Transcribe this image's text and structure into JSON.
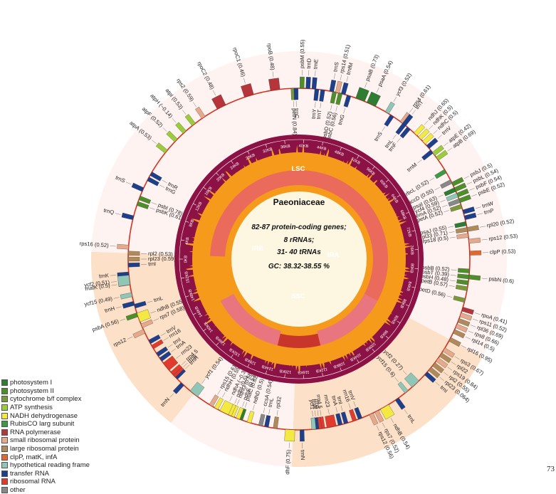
{
  "center": {
    "title": "Paeoniaceae",
    "lines": [
      "82-87 protein-coding genes;",
      "8 rRNAs;",
      "31- 40 tRNAs",
      "GC: 38.32-38.55 %"
    ]
  },
  "regions": {
    "lsc": "LSC",
    "ssc": "SSC",
    "ira": "IRA",
    "irb": "IRB"
  },
  "page_number": "73",
  "legend": [
    {
      "label": "photosystem I",
      "color": "#2e7d32"
    },
    {
      "label": "photosystem II",
      "color": "#4f8f2a"
    },
    {
      "label": "cytochrome b/f complex",
      "color": "#7a9a3a"
    },
    {
      "label": "ATP synthesis",
      "color": "#9ccc3c"
    },
    {
      "label": "NADH dehydrogenase",
      "color": "#f4e842"
    },
    {
      "label": "RubisCO larg subunit",
      "color": "#3e9a45"
    },
    {
      "label": "RNA polymerase",
      "color": "#b5353a"
    },
    {
      "label": "small ribosomal protein",
      "color": "#e7a98b"
    },
    {
      "label": "large ribosomal protein",
      "color": "#b08a5a"
    },
    {
      "label": "clpP, matK, infA",
      "color": "#e06a2c"
    },
    {
      "label": "hypothetical reading frame",
      "color": "#8fc6b6"
    },
    {
      "label": "transfer RNA",
      "color": "#1d3f8c"
    },
    {
      "label": "ribosomal RNA",
      "color": "#e13b2e"
    },
    {
      "label": "other",
      "color": "#888888"
    }
  ],
  "kb_ticks": [
    "0KB",
    "4KB",
    "8KB",
    "12KB",
    "16KB",
    "20KB",
    "24KB",
    "28KB",
    "32KB",
    "36KB",
    "40KB",
    "44KB",
    "48KB",
    "52KB",
    "56KB",
    "60KB",
    "64KB",
    "68KB",
    "72KB",
    "76KB",
    "80KB",
    "84KB",
    "88KB",
    "92KB",
    "96KB",
    "100KB",
    "104KB",
    "108KB",
    "112KB",
    "116KB",
    "120KB",
    "124KB",
    "128KB",
    "132KB",
    "136KB",
    "140KB",
    "144KB",
    "148KB",
    "152KB"
  ],
  "genes": [
    {
      "label": "psbA (0.56)",
      "angle": 251,
      "cls": 1,
      "side": "out"
    },
    {
      "label": "trnH",
      "angle": 255,
      "cls": 11,
      "side": "out"
    },
    {
      "label": "matK (0.5)",
      "angle": 262,
      "cls": 9,
      "side": "out"
    },
    {
      "label": "trnK",
      "angle": 265,
      "cls": 11,
      "side": "out"
    },
    {
      "label": "rps16 (0.52)",
      "angle": 274,
      "cls": 7,
      "side": "out"
    },
    {
      "label": "trnQ",
      "angle": 284,
      "cls": 11,
      "side": "out"
    },
    {
      "label": "psbK (0.61)",
      "angle": 289,
      "cls": 1,
      "side": "in"
    },
    {
      "label": "psbI (0.78)",
      "angle": 291,
      "cls": 1,
      "side": "in"
    },
    {
      "label": "trnS",
      "angle": 294,
      "cls": 11,
      "side": "out"
    },
    {
      "label": "trnG",
      "angle": 298,
      "cls": 11,
      "side": "in"
    },
    {
      "label": "trnR",
      "angle": 300,
      "cls": 11,
      "side": "in"
    },
    {
      "label": "atpA (0.53)",
      "angle": 309,
      "cls": 3,
      "side": "out"
    },
    {
      "label": "atpF (0.52)",
      "angle": 314,
      "cls": 3,
      "side": "out"
    },
    {
      "label": "atpH (~0.14)",
      "angle": 318,
      "cls": 3,
      "side": "out"
    },
    {
      "label": "atpI (0.53)",
      "angle": 322,
      "cls": 3,
      "side": "out"
    },
    {
      "label": "rps2 (0.59)",
      "angle": 326,
      "cls": 7,
      "side": "out"
    },
    {
      "label": "rpoC2 (0.48)",
      "angle": 333,
      "cls": 6,
      "side": "out"
    },
    {
      "label": "rpoC1 (0.46)",
      "angle": 343,
      "cls": 6,
      "side": "out"
    },
    {
      "label": "rpoB (0.48)",
      "angle": 352,
      "cls": 6,
      "side": "out"
    },
    {
      "label": "petN (0.84)",
      "angle": 358,
      "cls": 2,
      "side": "in"
    },
    {
      "label": "trnC",
      "angle": 359,
      "cls": 11,
      "side": "in"
    },
    {
      "label": "psbM (0.55)",
      "angle": 1,
      "cls": 1,
      "side": "out"
    },
    {
      "label": "trnD",
      "angle": 3,
      "cls": 11,
      "side": "out"
    },
    {
      "label": "trnE",
      "angle": 5,
      "cls": 11,
      "side": "out"
    },
    {
      "label": "trnY",
      "angle": 6,
      "cls": 11,
      "side": "in"
    },
    {
      "label": "trnT",
      "angle": 8,
      "cls": 11,
      "side": "in"
    },
    {
      "label": "psbD (0.52)",
      "angle": 12,
      "cls": 1,
      "side": "in"
    },
    {
      "label": "psbC (0.56)",
      "angle": 14,
      "cls": 1,
      "side": "in"
    },
    {
      "label": "trnS",
      "angle": 11,
      "cls": 11,
      "side": "out"
    },
    {
      "label": "rps14 (0.51)",
      "angle": 13,
      "cls": 7,
      "side": "out"
    },
    {
      "label": "trnfM",
      "angle": 15,
      "cls": 11,
      "side": "out"
    },
    {
      "label": "trnG",
      "angle": 17,
      "cls": 11,
      "side": "in"
    },
    {
      "label": "psaB (0.73)",
      "angle": 21,
      "cls": 0,
      "side": "out"
    },
    {
      "label": "psaA (0.54)",
      "angle": 25,
      "cls": 0,
      "side": "out"
    },
    {
      "label": "ycf3 (0.52)",
      "angle": 31,
      "cls": 10,
      "side": "out"
    },
    {
      "label": "trnS",
      "angle": 33,
      "cls": 11,
      "side": "in"
    },
    {
      "label": "rps4 (0.61)",
      "angle": 37,
      "cls": 7,
      "side": "out"
    },
    {
      "label": "trnT",
      "angle": 38,
      "cls": 11,
      "side": "out"
    },
    {
      "label": "trnL",
      "angle": 38,
      "cls": 11,
      "side": "in"
    },
    {
      "label": "trnF",
      "angle": 40,
      "cls": 11,
      "side": "in"
    },
    {
      "label": "ndhJ (0.65)",
      "angle": 43,
      "cls": 4,
      "side": "out"
    },
    {
      "label": "ndhK (0.5)",
      "angle": 45,
      "cls": 4,
      "side": "out"
    },
    {
      "label": "ndhC (0.5)",
      "angle": 47,
      "cls": 4,
      "side": "out"
    },
    {
      "label": "trnV",
      "angle": 49,
      "cls": 11,
      "side": "out"
    },
    {
      "label": "trnM",
      "angle": 51,
      "cls": 11,
      "side": "in"
    },
    {
      "label": "atpE (0.42)",
      "angle": 52,
      "cls": 3,
      "side": "out"
    },
    {
      "label": "atpB (0.69)",
      "angle": 54,
      "cls": 3,
      "side": "out"
    },
    {
      "label": "rbcL (0.52)",
      "angle": 59,
      "cls": 5,
      "side": "in"
    },
    {
      "label": "accD (0.55)",
      "angle": 63,
      "cls": 13,
      "side": "in"
    },
    {
      "label": "psaI (0.63)",
      "angle": 66,
      "cls": 0,
      "side": "in"
    },
    {
      "label": "ycf4 (0.59)",
      "angle": 68,
      "cls": 10,
      "side": "in"
    },
    {
      "label": "cemA (0.52)",
      "angle": 70,
      "cls": 13,
      "side": "in"
    },
    {
      "label": "petA (0.52)",
      "angle": 72,
      "cls": 2,
      "side": "in"
    },
    {
      "label": "psbJ (0.5)",
      "angle": 64,
      "cls": 1,
      "side": "out"
    },
    {
      "label": "psbL (0.54)",
      "angle": 66,
      "cls": 1,
      "side": "out"
    },
    {
      "label": "psbF (0.54)",
      "angle": 68,
      "cls": 1,
      "side": "out"
    },
    {
      "label": "psbE (0.52)",
      "angle": 70,
      "cls": 1,
      "side": "out"
    },
    {
      "label": "trnW",
      "angle": 74,
      "cls": 11,
      "side": "out"
    },
    {
      "label": "trnP",
      "angle": 76,
      "cls": 11,
      "side": "out"
    },
    {
      "label": "psaJ (0.55)",
      "angle": 78,
      "cls": 0,
      "side": "in"
    },
    {
      "label": "rpl33 (0.71)",
      "angle": 80,
      "cls": 8,
      "side": "in"
    },
    {
      "label": "rps18 (0.5)",
      "angle": 82,
      "cls": 7,
      "side": "in"
    },
    {
      "label": "rpl20 (0.52)",
      "angle": 80,
      "cls": 8,
      "side": "out"
    },
    {
      "label": "rps12 (0.53)",
      "angle": 84,
      "cls": 7,
      "side": "out"
    },
    {
      "label": "clpP (0.53)",
      "angle": 88,
      "cls": 9,
      "side": "out"
    },
    {
      "label": "psbB (0.52)",
      "angle": 94,
      "cls": 1,
      "side": "in"
    },
    {
      "label": "psbT (0.39)",
      "angle": 96,
      "cls": 1,
      "side": "in"
    },
    {
      "label": "psbH (0.48)",
      "angle": 98,
      "cls": 1,
      "side": "in"
    },
    {
      "label": "petB (0.57)",
      "angle": 100,
      "cls": 2,
      "side": "in"
    },
    {
      "label": "petD (0.56)",
      "angle": 104,
      "cls": 2,
      "side": "in"
    },
    {
      "label": "psbN (0.6)",
      "angle": 96,
      "cls": 1,
      "side": "out"
    },
    {
      "label": "rpoA (0.41)",
      "angle": 107,
      "cls": 6,
      "side": "out"
    },
    {
      "label": "rps11 (0.52)",
      "angle": 109,
      "cls": 7,
      "side": "out"
    },
    {
      "label": "rpl36 (0.69)",
      "angle": 111,
      "cls": 8,
      "side": "out"
    },
    {
      "label": "rps8 (0.66)",
      "angle": 113,
      "cls": 7,
      "side": "out"
    },
    {
      "label": "rpl14 (0.5)",
      "angle": 115,
      "cls": 8,
      "side": "out"
    },
    {
      "label": "rpl16 (0.95)",
      "angle": 118,
      "cls": 8,
      "side": "out"
    },
    {
      "label": "rps3 (0.67)",
      "angle": 122,
      "cls": 7,
      "side": "out"
    },
    {
      "label": "rpl22",
      "angle": 124,
      "cls": 8,
      "side": "out"
    },
    {
      "label": "rps19 (0.84)",
      "angle": 126,
      "cls": 7,
      "side": "out"
    },
    {
      "label": "rpl2 (0.55)",
      "angle": 128,
      "cls": 8,
      "side": "out"
    },
    {
      "label": "rpl23 (0.064)",
      "angle": 130,
      "cls": 8,
      "side": "out"
    },
    {
      "label": "trnI",
      "angle": 132,
      "cls": 11,
      "side": "out"
    },
    {
      "label": "ycf2 (0.27)",
      "angle": 137,
      "cls": 10,
      "side": "in"
    },
    {
      "label": "ycf15 (0.6)",
      "angle": 141,
      "cls": 10,
      "side": "in"
    },
    {
      "label": "trnL",
      "angle": 145,
      "cls": 11,
      "side": "out"
    },
    {
      "label": "ndhB (0.54)",
      "angle": 150,
      "cls": 4,
      "side": "out"
    },
    {
      "label": "rps7 (0.52)",
      "angle": 153,
      "cls": 7,
      "side": "out"
    },
    {
      "label": "rps12 (0.56)",
      "angle": 155,
      "cls": 7,
      "side": "out"
    },
    {
      "label": "trnV",
      "angle": 159,
      "cls": 11,
      "side": "in"
    },
    {
      "label": "rrn16",
      "angle": 161,
      "cls": 12,
      "side": "in"
    },
    {
      "label": "trnI",
      "angle": 164,
      "cls": 11,
      "side": "in"
    },
    {
      "label": "trnA",
      "angle": 166,
      "cls": 11,
      "side": "in"
    },
    {
      "label": "rrn23",
      "angle": 169,
      "cls": 12,
      "side": "in"
    },
    {
      "label": "rrn4.5",
      "angle": 172,
      "cls": 12,
      "side": "in"
    },
    {
      "label": "rrn5",
      "angle": 173,
      "cls": 12,
      "side": "in"
    },
    {
      "label": "trnR",
      "angle": 174,
      "cls": 11,
      "side": "in"
    },
    {
      "label": "trnN",
      "angle": 179,
      "cls": 11,
      "side": "out"
    },
    {
      "label": "ycf1",
      "angle": 175,
      "cls": 10,
      "side": "in"
    },
    {
      "label": "ndhF (0.75)",
      "angle": 183,
      "cls": 4,
      "side": "out"
    },
    {
      "label": "rpl32",
      "angle": 188,
      "cls": 8,
      "side": "in"
    },
    {
      "label": "trnL",
      "angle": 191,
      "cls": 11,
      "side": "in"
    },
    {
      "label": "ccsA (0.54)",
      "angle": 193,
      "cls": 13,
      "side": "in"
    },
    {
      "label": "ndhD (0.5)",
      "angle": 197,
      "cls": 4,
      "side": "in"
    },
    {
      "label": "psaC (0.62)",
      "angle": 200,
      "cls": 0,
      "side": "in"
    },
    {
      "label": "ndhE (0.53)",
      "angle": 201,
      "cls": 4,
      "side": "in"
    },
    {
      "label": "ndhG (0.58)",
      "angle": 203,
      "cls": 4,
      "side": "in"
    },
    {
      "label": "ndhI (0.5)",
      "angle": 204,
      "cls": 4,
      "side": "in"
    },
    {
      "label": "ndhA (~0.35)",
      "angle": 206,
      "cls": 4,
      "side": "in"
    },
    {
      "label": "ndhH (0.55)",
      "angle": 209,
      "cls": 4,
      "side": "in"
    },
    {
      "label": "rps15 (0.61)",
      "angle": 211,
      "cls": 7,
      "side": "in"
    },
    {
      "label": "ycf1 (0.54)",
      "angle": 218,
      "cls": 10,
      "side": "in"
    },
    {
      "label": "trnN",
      "angle": 223,
      "cls": 11,
      "side": "out"
    },
    {
      "label": "trnR",
      "angle": 226,
      "cls": 11,
      "side": "in"
    },
    {
      "label": "rrn5",
      "angle": 227,
      "cls": 12,
      "side": "in"
    },
    {
      "label": "rrn4.5",
      "angle": 228,
      "cls": 12,
      "side": "in"
    },
    {
      "label": "rrn23",
      "angle": 231,
      "cls": 12,
      "side": "in"
    },
    {
      "label": "trnA",
      "angle": 234,
      "cls": 11,
      "side": "in"
    },
    {
      "label": "trnI",
      "angle": 236,
      "cls": 11,
      "side": "in"
    },
    {
      "label": "rrn16",
      "angle": 239,
      "cls": 12,
      "side": "in"
    },
    {
      "label": "trnV",
      "angle": 241,
      "cls": 11,
      "side": "in"
    },
    {
      "label": "rps12",
      "angle": 245,
      "cls": 7,
      "side": "out"
    },
    {
      "label": "rps7 (0.58)",
      "angle": 247,
      "cls": 7,
      "side": "in"
    },
    {
      "label": "ndhB (0.55)",
      "angle": 250,
      "cls": 4,
      "side": "in"
    },
    {
      "label": "trnL",
      "angle": 254,
      "cls": 11,
      "side": "in"
    },
    {
      "label": "ycf15 (0.49)",
      "angle": 258,
      "cls": 10,
      "side": "out"
    },
    {
      "label": "ycf2 (0.51)",
      "angle": 263,
      "cls": 10,
      "side": "out"
    },
    {
      "label": "trnI",
      "angle": 268,
      "cls": 11,
      "side": "in"
    },
    {
      "label": "rpl23 (0.59)",
      "angle": 270,
      "cls": 8,
      "side": "in"
    },
    {
      "label": "rpl2 (0.53)",
      "angle": 272,
      "cls": 8,
      "side": "in"
    }
  ]
}
